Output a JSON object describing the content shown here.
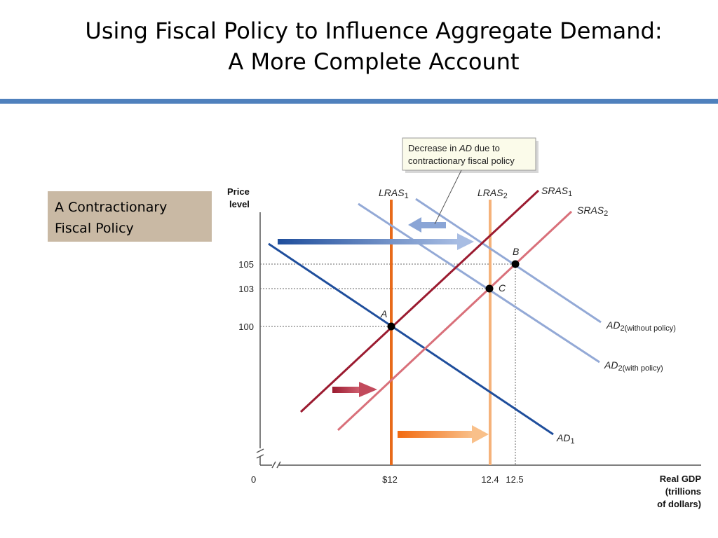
{
  "slide": {
    "title_line1": "Using Fiscal Policy to Influence Aggregate Demand:",
    "title_line2": "A More Complete Account",
    "side_box_line1": "A Contractionary",
    "side_box_line2": "Fiscal Policy"
  },
  "colors": {
    "title_rule": "#4f81bd",
    "side_box": "#c9b9a4",
    "ad1": "#1f4e9c",
    "ad2": "#93a9d6",
    "sras1": "#9b1b30",
    "sras2": "#d9707a",
    "lras1": "#e86a1a",
    "lras2": "#f5b27a"
  },
  "chart_data": {
    "type": "line",
    "ylabel_line1": "Price",
    "ylabel_line2": "level",
    "xlabel_line1": "Real GDP",
    "xlabel_line2": "(trillions",
    "xlabel_line3": "of dollars)",
    "origin_label": "0",
    "x_ticks": [
      {
        "value": 12.0,
        "label": "$12"
      },
      {
        "value": 12.4,
        "label": "12.4"
      },
      {
        "value": 12.5,
        "label": "12.5"
      }
    ],
    "y_ticks": [
      {
        "value": 100,
        "label": "100"
      },
      {
        "value": 103,
        "label": "103"
      },
      {
        "value": 105,
        "label": "105"
      }
    ],
    "equilibrium_points": [
      {
        "name": "A",
        "x": 12.0,
        "y": 100
      },
      {
        "name": "B",
        "x": 12.5,
        "y": 105
      },
      {
        "name": "C",
        "x": 12.4,
        "y": 103
      }
    ],
    "curves": {
      "lras1": {
        "label": "LRAS",
        "sub": "1",
        "x": 12.0
      },
      "lras2": {
        "label": "LRAS",
        "sub": "2",
        "x": 12.4
      },
      "sras1": {
        "label": "SRAS",
        "sub": "1"
      },
      "sras2": {
        "label": "SRAS",
        "sub": "2"
      },
      "ad1": {
        "label": "AD",
        "sub": "1"
      },
      "ad2_without": {
        "label": "AD",
        "sub": "2(without policy)"
      },
      "ad2_with": {
        "label": "AD",
        "sub": "2(with policy)"
      }
    },
    "callout": {
      "line1_pre": "Decrease in ",
      "line1_em": "AD",
      "line1_post": " due to",
      "line2": "contractionary fiscal policy"
    }
  }
}
